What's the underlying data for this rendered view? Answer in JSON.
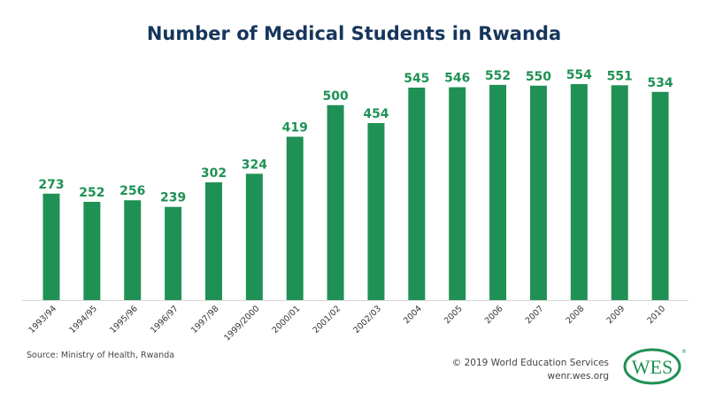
{
  "chart_data": {
    "type": "bar",
    "title": "Number of Medical Students in Rwanda",
    "categories": [
      "1993/94",
      "1994/95",
      "1995/96",
      "1996/97",
      "1997/98",
      "1999/2000",
      "2000/01",
      "2001/02",
      "2002/03",
      "2004",
      "2005",
      "2006",
      "2007",
      "2008",
      "2009",
      "2010"
    ],
    "values": [
      273,
      252,
      256,
      239,
      302,
      324,
      419,
      500,
      454,
      545,
      546,
      552,
      550,
      554,
      551,
      534
    ],
    "xlabel": "",
    "ylabel": "",
    "ylim": [
      0,
      600
    ],
    "grid": false,
    "data_labels": true,
    "bar_color": "#1f9155",
    "label_color": "#1f9155"
  },
  "footer": {
    "source": "Source: Ministry of Health, Rwanda",
    "copyright": "© 2019 World Education Services",
    "website": "wenr.wes.org",
    "logo_text": "WES"
  }
}
